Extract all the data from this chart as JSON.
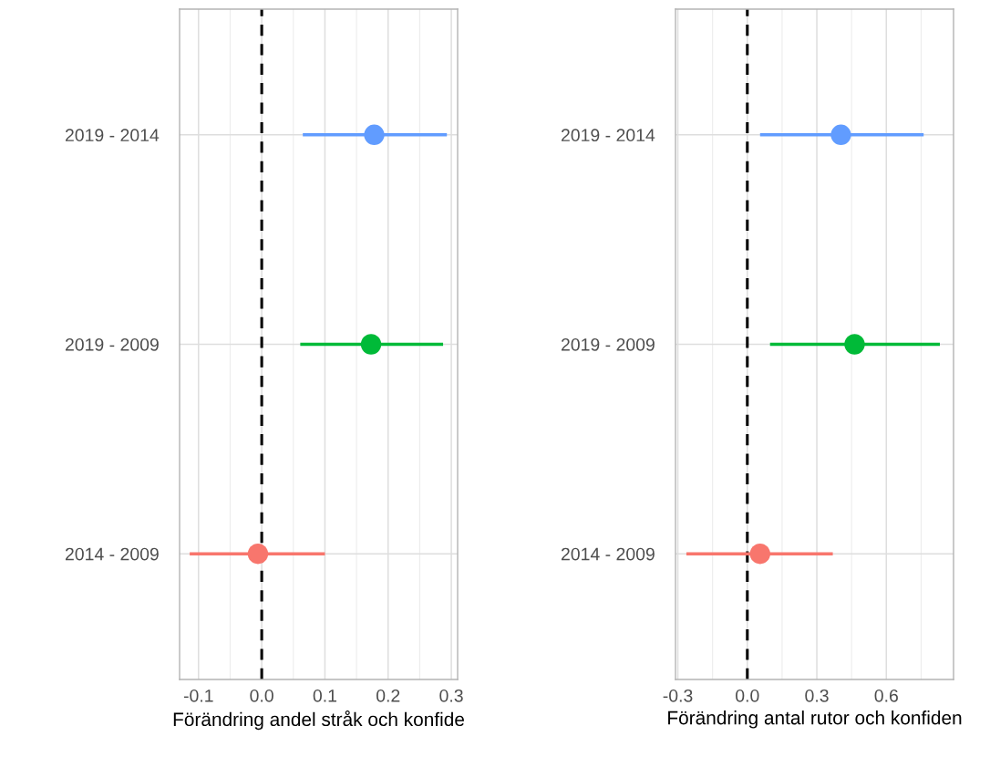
{
  "chart_data": [
    {
      "type": "scatter",
      "orientation": "horizontal",
      "xlabel": "Förändring andel stråk och konfide",
      "categories": [
        "2019 - 2014",
        "2019 - 2009",
        "2014 - 2009"
      ],
      "values": [
        0.178,
        0.173,
        -0.006
      ],
      "errors": [
        [
          0.065,
          0.293
        ],
        [
          0.061,
          0.287
        ],
        [
          -0.114,
          0.1
        ]
      ],
      "colors": [
        "#619cff",
        "#00ba38",
        "#f8766d"
      ],
      "xlim": [
        -0.13,
        0.31
      ],
      "xticks": [
        -0.1,
        {
          "value": 0,
          "label": "0.0"
        },
        0.1,
        0.2,
        0.3
      ],
      "ref_lines": [
        {
          "axis": "x",
          "value": 0,
          "color": "#000000",
          "line_style": "dashed"
        }
      ],
      "grid": true,
      "marker": "circle"
    },
    {
      "type": "scatter",
      "orientation": "horizontal",
      "xlabel": "Förändring antal rutor och konfiden",
      "categories": [
        "2019 - 2014",
        "2019 - 2009",
        "2014 - 2009"
      ],
      "values": [
        0.404,
        0.463,
        0.055
      ],
      "errors": [
        [
          0.055,
          0.761
        ],
        [
          0.098,
          0.831
        ],
        [
          -0.263,
          0.369
        ]
      ],
      "colors": [
        "#619cff",
        "#00ba38",
        "#f8766d"
      ],
      "xlim": [
        -0.31,
        0.89
      ],
      "xticks": [
        {
          "value": -0.3,
          "label": "-0.3"
        },
        {
          "value": 0,
          "label": "0.0"
        },
        {
          "value": 0.3,
          "label": "0.3"
        },
        {
          "value": 0.6,
          "label": "0.6"
        }
      ],
      "ref_lines": [
        {
          "axis": "x",
          "value": 0,
          "color": "#000000",
          "line_style": "dashed"
        }
      ],
      "grid": true,
      "marker": "circle"
    }
  ]
}
